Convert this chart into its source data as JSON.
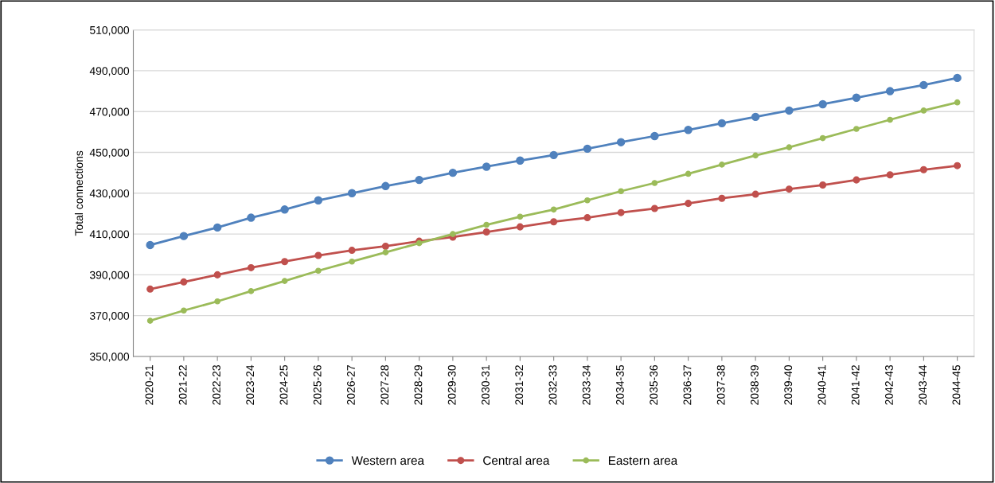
{
  "chart_data": {
    "type": "line",
    "ylabel": "Total connections",
    "categories": [
      "2020-21",
      "2021-22",
      "2022-23",
      "2023-24",
      "2024-25",
      "2025-26",
      "2026-27",
      "2027-28",
      "2028-29",
      "2029-30",
      "2030-31",
      "2031-32",
      "2032-33",
      "2033-34",
      "2034-35",
      "2035-36",
      "2036-37",
      "2037-38",
      "2038-39",
      "2039-40",
      "2040-41",
      "2041-42",
      "2042-43",
      "2043-44",
      "2044-45"
    ],
    "series": [
      {
        "name": "Western area",
        "color": "#4f81bd",
        "values": [
          404600,
          409000,
          413200,
          418000,
          422000,
          426500,
          430000,
          433500,
          436500,
          440000,
          443000,
          446000,
          448700,
          451800,
          455000,
          458000,
          461000,
          464300,
          467400,
          470500,
          473600,
          476800,
          480000,
          483000,
          486500
        ]
      },
      {
        "name": "Central area",
        "color": "#c0504d",
        "values": [
          383000,
          386500,
          390000,
          393500,
          396500,
          399500,
          402000,
          404000,
          406500,
          408500,
          411000,
          413500,
          416000,
          418000,
          420500,
          422500,
          425000,
          427500,
          429500,
          432000,
          434000,
          436500,
          439000,
          441500,
          443500
        ]
      },
      {
        "name": "Eastern area",
        "color": "#9bbb59",
        "values": [
          367500,
          372500,
          377000,
          382000,
          387000,
          392000,
          396500,
          401000,
          405500,
          410000,
          414500,
          418500,
          422000,
          426500,
          431000,
          435000,
          439500,
          444000,
          448500,
          452500,
          457000,
          461500,
          466000,
          470500,
          474500
        ]
      }
    ],
    "ylim": [
      350000,
      510000
    ],
    "yticks": [
      {
        "value": 350000,
        "label": "350,000"
      },
      {
        "value": 370000,
        "label": "370,000"
      },
      {
        "value": 390000,
        "label": "390,000"
      },
      {
        "value": 410000,
        "label": "410,000"
      },
      {
        "value": 430000,
        "label": "430,000"
      },
      {
        "value": 450000,
        "label": "450,000"
      },
      {
        "value": 470000,
        "label": "470,000"
      },
      {
        "value": 490000,
        "label": "490,000"
      },
      {
        "value": 510000,
        "label": "510,000"
      }
    ],
    "grid": "y",
    "legend": "bottom",
    "marker": "circle",
    "line_style": "solid"
  }
}
